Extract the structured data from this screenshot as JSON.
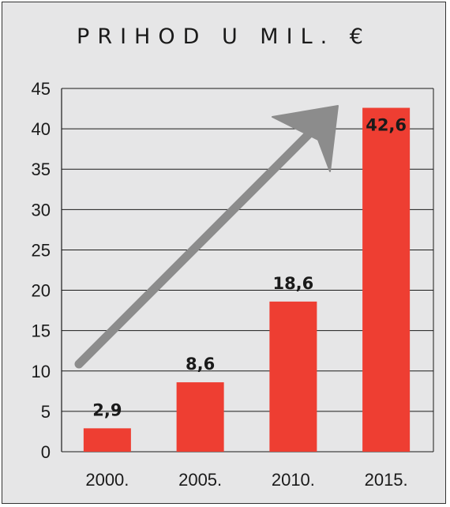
{
  "chart_data": {
    "type": "bar",
    "title": "PRIHOD U MIL. €",
    "categories": [
      "2000.",
      "2005.",
      "2010.",
      "2015."
    ],
    "values": [
      2.9,
      8.6,
      18.6,
      42.6
    ],
    "value_labels": [
      "2,9",
      "8,6",
      "18,6",
      "42,6"
    ],
    "ylim": [
      0,
      45
    ],
    "yticks": [
      "0",
      "5",
      "10",
      "15",
      "20",
      "25",
      "30",
      "35",
      "40",
      "45"
    ],
    "grid": true,
    "xlabel": "",
    "ylabel": "",
    "bar_color": "#ee3e32",
    "arrow_color": "#8c8c8c"
  }
}
